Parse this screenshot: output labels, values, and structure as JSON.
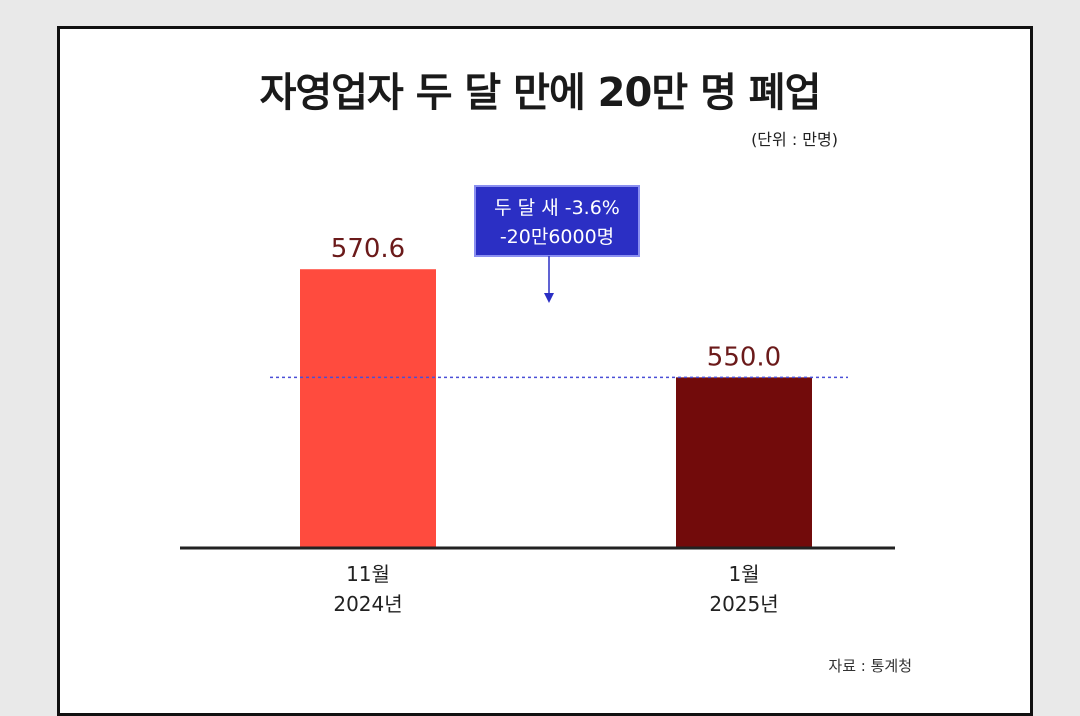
{
  "title": "자영업자 두 달 만에 20만 명 폐업",
  "unit_label": "(단위 : 만명)",
  "source": "자료 : 통계청",
  "callout": {
    "line1": "두 달 새 -3.6%",
    "line2": "-20만6000명"
  },
  "colors": {
    "bar1": "#ff4b3e",
    "bar2": "#720b0b",
    "value_text": "#6b1a1a",
    "callout_bg": "#2b2fc4",
    "reference_line": "#4a4fd6"
  },
  "chart_data": {
    "type": "bar",
    "title": "자영업자 두 달 만에 20만 명 폐업",
    "unit": "(단위 : 만명)",
    "categories": [
      [
        "11월",
        "2024년"
      ],
      [
        "1월",
        "2025년"
      ]
    ],
    "values": [
      570.6,
      550.0
    ],
    "value_labels": [
      "570.6",
      "550.0"
    ],
    "reference_line": 550.0,
    "annotation": [
      "두 달 새 -3.6%",
      "-20만6000명"
    ],
    "grid": false
  }
}
